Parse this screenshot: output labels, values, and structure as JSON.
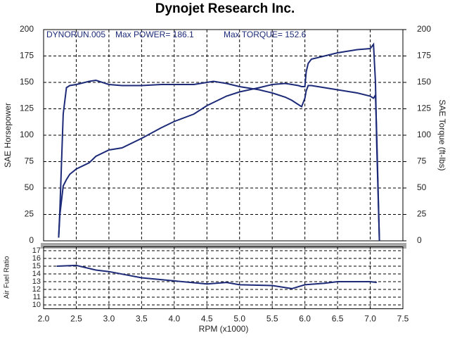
{
  "chart_data": [
    {
      "type": "line",
      "title": "Dynojet Research  Inc.",
      "annotations": [
        "DYNORUN.005",
        "Max POWER= 186.1",
        "Max TORQUE= 152.6"
      ],
      "ylabel": "SAE Horsepower",
      "y2label": "SAE Torque (ft-lbs)",
      "xlim": [
        2.0,
        7.5
      ],
      "ylim": [
        0,
        200
      ],
      "yticks": [
        0,
        25,
        50,
        75,
        100,
        125,
        150,
        175,
        200
      ],
      "y2lim": [
        0,
        200
      ],
      "y2ticks": [
        0,
        25,
        50,
        75,
        100,
        125,
        150,
        175,
        200
      ],
      "grid": true,
      "x": [
        2.23,
        2.25,
        2.3,
        2.35,
        2.4,
        2.5,
        2.7,
        2.8,
        3.0,
        3.2,
        3.5,
        3.8,
        4.0,
        4.3,
        4.5,
        4.6,
        4.8,
        5.0,
        5.3,
        5.5,
        5.7,
        5.8,
        5.9,
        5.95,
        6.0,
        6.02,
        6.05,
        6.1,
        6.3,
        6.5,
        6.6,
        6.8,
        7.0,
        7.05,
        7.08,
        7.1,
        7.14
      ],
      "series": [
        {
          "name": "SAE Horsepower",
          "color": "#1c2a78",
          "values": [
            3,
            25,
            52,
            58,
            63,
            68,
            74,
            80,
            86,
            88,
            97,
            107,
            113,
            120,
            128,
            131,
            137,
            141,
            145,
            148,
            149,
            148,
            147,
            146,
            146,
            160,
            168,
            172,
            175,
            178,
            179,
            181,
            182,
            186,
            150,
            90,
            0
          ]
        },
        {
          "name": "SAE Torque (ft-lbs)",
          "color": "#1c2a78",
          "axis": "y2",
          "values": [
            3,
            30,
            120,
            145,
            147,
            148,
            151,
            152,
            148,
            147,
            147,
            148,
            148,
            148,
            150,
            151,
            149,
            146,
            143,
            140,
            136,
            133,
            129,
            127,
            135,
            142,
            147,
            147,
            145,
            143,
            142,
            140,
            137,
            135,
            138,
            100,
            0
          ]
        }
      ]
    },
    {
      "type": "line",
      "ylabel": "Air Fuel Ratio",
      "xlabel": "RPM (x1000)",
      "xlim": [
        2.0,
        7.5
      ],
      "xticks": [
        {
          "value": 2.0,
          "label": "2.0"
        },
        2.5,
        {
          "value": 3.0,
          "label": "3.0"
        },
        3.5,
        {
          "value": 4.0,
          "label": "4.0"
        },
        4.5,
        {
          "value": 5.0,
          "label": "5.0"
        },
        5.5,
        {
          "value": 6.0,
          "label": "6.0"
        },
        6.5,
        {
          "value": 7.0,
          "label": "7.0"
        },
        7.5
      ],
      "ylim": [
        9.5,
        17.5
      ],
      "yticks": [
        10,
        11,
        12,
        13,
        14,
        15,
        16,
        17
      ],
      "grid": true,
      "x": [
        2.2,
        2.5,
        2.8,
        3.0,
        3.5,
        4.0,
        4.5,
        4.8,
        5.0,
        5.5,
        5.8,
        6.0,
        6.3,
        6.5,
        7.0,
        7.1
      ],
      "series": [
        {
          "name": "Air Fuel Ratio",
          "color": "#1c2a78",
          "values": [
            15,
            15.1,
            14.5,
            14.3,
            13.5,
            13.1,
            12.7,
            12.9,
            12.6,
            12.5,
            12.1,
            12.6,
            12.8,
            13.0,
            13.0,
            12.9
          ]
        }
      ]
    }
  ]
}
